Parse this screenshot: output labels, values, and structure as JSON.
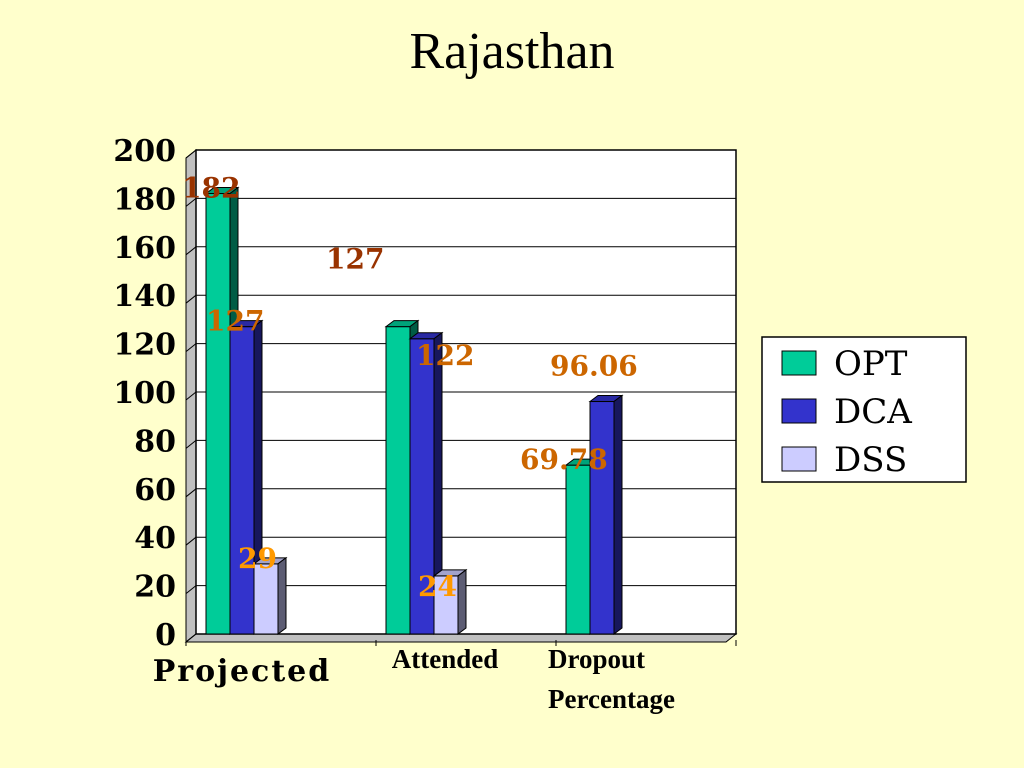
{
  "slide": {
    "title": "Rajasthan"
  },
  "chart_data": {
    "type": "bar",
    "title": "Rajasthan",
    "categories": [
      "Projected",
      "Attended",
      "Dropout Percentage"
    ],
    "category_lines": [
      [
        "Projected"
      ],
      [
        "Attended"
      ],
      [
        "Dropout",
        "Percentage"
      ]
    ],
    "series": [
      {
        "name": "OPT",
        "color": "#00CC99",
        "values": [
          182,
          127,
          69.78
        ],
        "labels": [
          "182",
          "127",
          "69.78"
        ]
      },
      {
        "name": "DCA",
        "color": "#3333CC",
        "values": [
          127,
          122,
          96.06
        ],
        "labels": [
          "127",
          "122",
          "96.06"
        ]
      },
      {
        "name": "DSS",
        "color": "#CCCCFF",
        "values": [
          29,
          24,
          null
        ],
        "labels": [
          "29",
          "24",
          ""
        ]
      }
    ],
    "ylim": [
      0,
      200
    ],
    "yticks": [
      0,
      20,
      40,
      60,
      80,
      100,
      120,
      140,
      160,
      180,
      200
    ],
    "grid": true,
    "legend": "right",
    "label_colors": {
      "dark": "#993300",
      "orange": "#FF9900",
      "rust": "#CC6600"
    }
  }
}
